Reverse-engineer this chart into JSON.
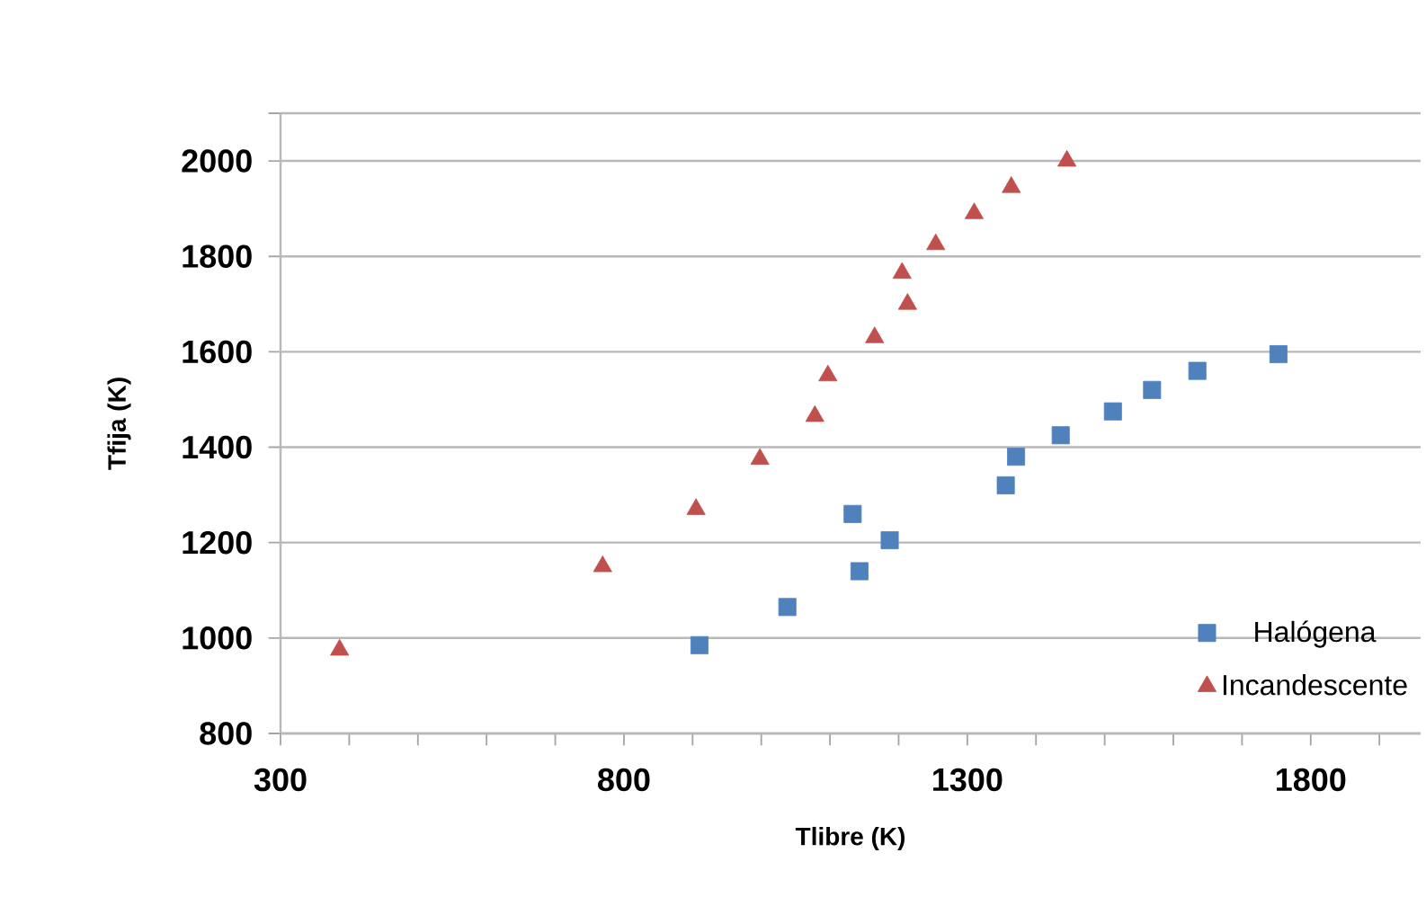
{
  "chart_data": {
    "type": "scatter",
    "xlabel": "Tlibre (K)",
    "ylabel": "Tfija (K)",
    "xlim": [
      300,
      1960
    ],
    "ylim": [
      800,
      2100
    ],
    "xticks": [
      300,
      {
        "value": 400,
        "label": null
      },
      {
        "value": 500,
        "label": null
      },
      {
        "value": 600,
        "label": null
      },
      {
        "value": 700,
        "label": null
      },
      800,
      {
        "value": 900,
        "label": null
      },
      {
        "value": 1000,
        "label": null
      },
      {
        "value": 1100,
        "label": null
      },
      {
        "value": 1200,
        "label": null
      },
      1300,
      {
        "value": 1400,
        "label": null
      },
      {
        "value": 1500,
        "label": null
      },
      {
        "value": 1600,
        "label": null
      },
      {
        "value": 1700,
        "label": null
      },
      1800,
      {
        "value": 1900,
        "label": null
      }
    ],
    "yticks": [
      800,
      1000,
      1200,
      1400,
      1600,
      1800,
      2000,
      {
        "value": 2100,
        "label": null
      }
    ],
    "grid": "y",
    "legend": "bottom right",
    "series": [
      {
        "name": "Halógena",
        "color": "#4f81bd",
        "marker": "square",
        "x": [
          910,
          1038,
          1143,
          1133,
          1187,
          1356,
          1371,
          1436,
          1512,
          1569,
          1635,
          1753
        ],
        "values": [
          985,
          1065,
          1140,
          1260,
          1205,
          1320,
          1380,
          1425,
          1475,
          1520,
          1560,
          1595
        ]
      },
      {
        "name": "Incandescente",
        "color": "#c0504d",
        "marker": "triangle",
        "x": [
          386,
          769,
          905,
          998,
          1078,
          1097,
          1165,
          1213,
          1205,
          1254,
          1310,
          1364,
          1445
        ],
        "values": [
          975,
          1150,
          1270,
          1375,
          1465,
          1550,
          1630,
          1700,
          1765,
          1825,
          1890,
          1945,
          2000
        ]
      }
    ]
  }
}
